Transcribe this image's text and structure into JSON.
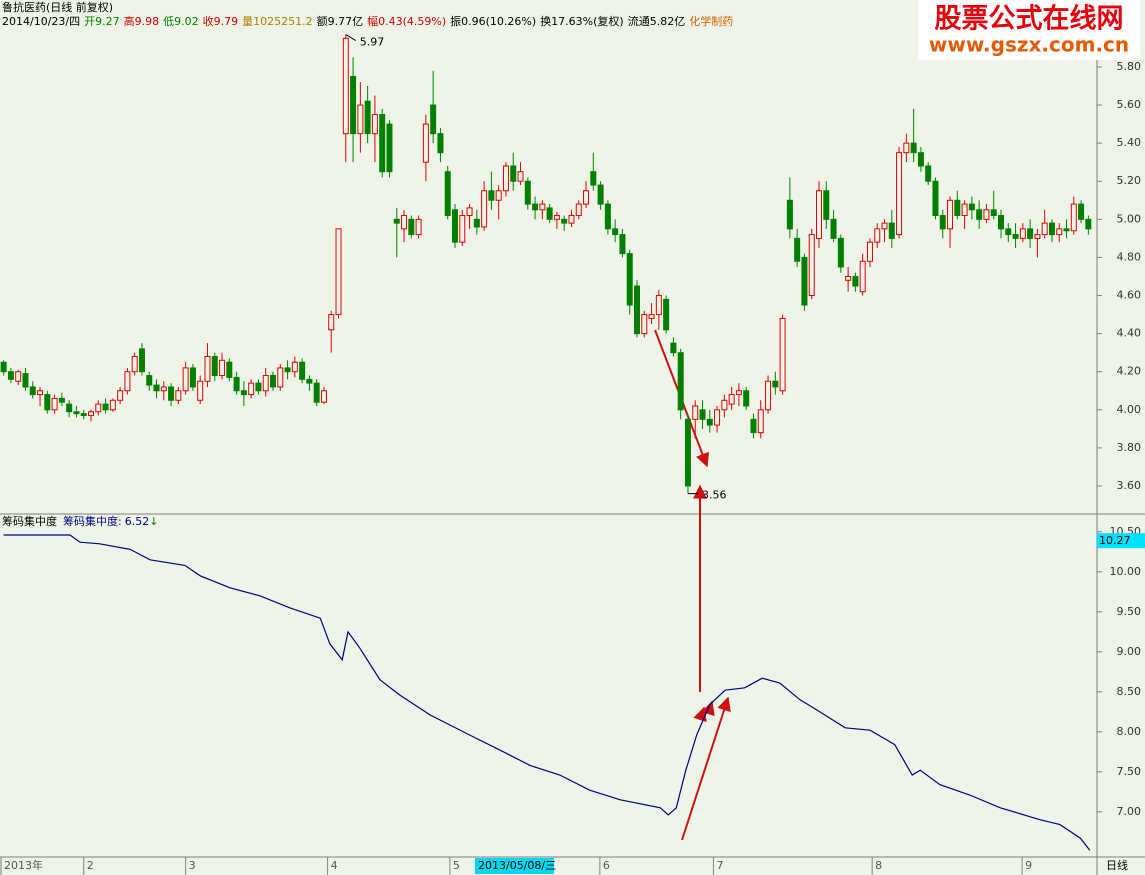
{
  "header": {
    "title": "鲁抗医药(日线 前复权)",
    "fields": [
      {
        "text": "2014/10/23/四",
        "color": "#000000"
      },
      {
        "text": "开9.27",
        "color": "#008000"
      },
      {
        "text": "高9.98",
        "color": "#d00000"
      },
      {
        "text": "低9.02",
        "color": "#008000"
      },
      {
        "text": "收9.79",
        "color": "#d00000"
      },
      {
        "text": "量1025251.2",
        "color": "#b08000"
      },
      {
        "text": "额9.77亿",
        "color": "#000000"
      },
      {
        "text": "幅0.43(4.59%)",
        "color": "#d00000"
      },
      {
        "text": "振0.96(10.26%)",
        "color": "#000000"
      },
      {
        "text": "换17.63%(复权)",
        "color": "#000000"
      },
      {
        "text": "流通5.82亿",
        "color": "#000000"
      },
      {
        "text": "化学制药",
        "color": "#d06000"
      }
    ]
  },
  "watermark": {
    "title": "股票公式在线网",
    "url": "www.gszx.com.cn"
  },
  "chart_data": [
    {
      "type": "candlestick",
      "up_color": "#e00000",
      "down_color": "#008000",
      "xlim": [
        -0.5,
        149.5
      ],
      "ylim": [
        3.474,
        5.994
      ],
      "yticks": [
        {
          "value": 3.6,
          "label": "3.60"
        },
        {
          "value": 3.8,
          "label": "3.80"
        },
        {
          "value": 4.0,
          "label": "4.00"
        },
        {
          "value": 4.2,
          "label": "4.20"
        },
        {
          "value": 4.4,
          "label": "4.40"
        },
        {
          "value": 4.6,
          "label": "4.60"
        },
        {
          "value": 4.8,
          "label": "4.80"
        },
        {
          "value": 5.0,
          "label": "5.00"
        },
        {
          "value": 5.2,
          "label": "5.20"
        },
        {
          "value": 5.4,
          "label": "5.40"
        },
        {
          "value": 5.6,
          "label": "5.60"
        },
        {
          "value": 5.8,
          "label": "5.80"
        }
      ],
      "annotations": [
        {
          "x": 47,
          "value": 5.97
        },
        {
          "x": 94,
          "value": 3.56
        }
      ],
      "ohlc": [
        [
          4.25,
          4.26,
          4.18,
          4.2
        ],
        [
          4.2,
          4.22,
          4.14,
          4.16
        ],
        [
          4.15,
          4.21,
          4.13,
          4.2
        ],
        [
          4.19,
          4.22,
          4.1,
          4.12
        ],
        [
          4.12,
          4.15,
          4.06,
          4.08
        ],
        [
          4.08,
          4.12,
          4.02,
          4.1
        ],
        [
          4.08,
          4.1,
          3.98,
          4.0
        ],
        [
          4.0,
          4.08,
          3.98,
          4.06
        ],
        [
          4.06,
          4.09,
          4.02,
          4.04
        ],
        [
          4.03,
          4.05,
          3.96,
          3.99
        ],
        [
          3.99,
          4.02,
          3.96,
          3.98
        ],
        [
          3.98,
          4.0,
          3.95,
          3.97
        ],
        [
          3.97,
          4.0,
          3.94,
          3.99
        ],
        [
          3.99,
          4.05,
          3.97,
          4.03
        ],
        [
          4.03,
          4.06,
          3.98,
          4.0
        ],
        [
          4.0,
          4.06,
          3.99,
          4.05
        ],
        [
          4.05,
          4.12,
          4.03,
          4.1
        ],
        [
          4.1,
          4.22,
          4.08,
          4.2
        ],
        [
          4.2,
          4.3,
          4.18,
          4.28
        ],
        [
          4.32,
          4.35,
          4.18,
          4.2
        ],
        [
          4.18,
          4.2,
          4.1,
          4.13
        ],
        [
          4.13,
          4.16,
          4.06,
          4.1
        ],
        [
          4.1,
          4.15,
          4.05,
          4.12
        ],
        [
          4.12,
          4.14,
          4.02,
          4.05
        ],
        [
          4.05,
          4.12,
          4.03,
          4.1
        ],
        [
          4.1,
          4.25,
          4.08,
          4.22
        ],
        [
          4.22,
          4.24,
          4.1,
          4.12
        ],
        [
          4.05,
          4.18,
          4.03,
          4.15
        ],
        [
          4.15,
          4.35,
          4.12,
          4.28
        ],
        [
          4.28,
          4.3,
          4.15,
          4.18
        ],
        [
          4.18,
          4.3,
          4.16,
          4.26
        ],
        [
          4.25,
          4.27,
          4.15,
          4.17
        ],
        [
          4.17,
          4.2,
          4.08,
          4.1
        ],
        [
          4.1,
          4.15,
          4.02,
          4.08
        ],
        [
          4.08,
          4.16,
          4.06,
          4.14
        ],
        [
          4.14,
          4.16,
          4.08,
          4.1
        ],
        [
          4.1,
          4.22,
          4.07,
          4.18
        ],
        [
          4.18,
          4.2,
          4.1,
          4.12
        ],
        [
          4.12,
          4.24,
          4.1,
          4.22
        ],
        [
          4.22,
          4.26,
          4.16,
          4.2
        ],
        [
          4.2,
          4.28,
          4.17,
          4.25
        ],
        [
          4.25,
          4.27,
          4.14,
          4.16
        ],
        [
          4.16,
          4.18,
          4.1,
          4.14
        ],
        [
          4.14,
          4.16,
          4.02,
          4.04
        ],
        [
          4.04,
          4.12,
          4.03,
          4.1
        ],
        [
          4.42,
          4.52,
          4.3,
          4.5
        ],
        [
          4.5,
          4.95,
          4.48,
          4.95
        ],
        [
          5.45,
          5.97,
          5.3,
          5.95
        ],
        [
          5.75,
          5.85,
          5.3,
          5.45
        ],
        [
          5.45,
          5.72,
          5.35,
          5.6
        ],
        [
          5.62,
          5.7,
          5.4,
          5.45
        ],
        [
          5.45,
          5.65,
          5.3,
          5.55
        ],
        [
          5.55,
          5.58,
          5.22,
          5.25
        ],
        [
          5.5,
          5.52,
          5.22,
          5.25
        ],
        [
          5.0,
          5.06,
          4.8,
          4.98
        ],
        [
          4.95,
          5.05,
          4.88,
          5.02
        ],
        [
          5.0,
          5.02,
          4.9,
          4.92
        ],
        [
          4.92,
          5.02,
          4.9,
          5.0
        ],
        [
          5.3,
          5.55,
          5.2,
          5.5
        ],
        [
          5.6,
          5.78,
          5.4,
          5.45
        ],
        [
          5.45,
          5.48,
          5.3,
          5.35
        ],
        [
          5.25,
          5.28,
          5.0,
          5.02
        ],
        [
          5.05,
          5.08,
          4.85,
          4.88
        ],
        [
          4.88,
          5.05,
          4.86,
          5.02
        ],
        [
          5.02,
          5.08,
          4.95,
          5.06
        ],
        [
          5.0,
          5.05,
          4.92,
          4.96
        ],
        [
          4.96,
          5.2,
          4.94,
          5.15
        ],
        [
          5.15,
          5.25,
          5.05,
          5.1
        ],
        [
          5.1,
          5.18,
          5.0,
          5.15
        ],
        [
          5.15,
          5.3,
          5.12,
          5.28
        ],
        [
          5.28,
          5.35,
          5.15,
          5.2
        ],
        [
          5.2,
          5.3,
          5.18,
          5.25
        ],
        [
          5.2,
          5.22,
          5.05,
          5.08
        ],
        [
          5.08,
          5.12,
          5.0,
          5.05
        ],
        [
          5.05,
          5.1,
          5.0,
          5.08
        ],
        [
          5.06,
          5.08,
          4.98,
          5.0
        ],
        [
          5.0,
          5.04,
          4.95,
          5.02
        ],
        [
          5.0,
          5.02,
          4.94,
          4.98
        ],
        [
          4.98,
          5.05,
          4.96,
          5.02
        ],
        [
          5.02,
          5.1,
          5.0,
          5.08
        ],
        [
          5.08,
          5.2,
          5.06,
          5.15
        ],
        [
          5.25,
          5.35,
          5.15,
          5.18
        ],
        [
          5.18,
          5.2,
          5.05,
          5.08
        ],
        [
          5.08,
          5.1,
          4.92,
          4.95
        ],
        [
          4.95,
          5.0,
          4.88,
          4.92
        ],
        [
          4.92,
          4.95,
          4.8,
          4.82
        ],
        [
          4.82,
          4.84,
          4.5,
          4.55
        ],
        [
          4.65,
          4.68,
          4.38,
          4.4
        ],
        [
          4.4,
          4.52,
          4.38,
          4.5
        ],
        [
          4.48,
          4.56,
          4.45,
          4.5
        ],
        [
          4.5,
          4.63,
          4.42,
          4.6
        ],
        [
          4.58,
          4.6,
          4.4,
          4.42
        ],
        [
          4.35,
          4.38,
          4.28,
          4.3
        ],
        [
          4.3,
          4.32,
          3.95,
          4.0
        ],
        [
          3.95,
          3.98,
          3.56,
          3.6
        ],
        [
          3.95,
          4.05,
          3.85,
          4.02
        ],
        [
          4.0,
          4.05,
          3.9,
          3.95
        ],
        [
          3.95,
          4.0,
          3.88,
          3.92
        ],
        [
          3.92,
          4.02,
          3.88,
          4.0
        ],
        [
          4.0,
          4.08,
          3.96,
          4.05
        ],
        [
          4.03,
          4.12,
          4.0,
          4.08
        ],
        [
          4.08,
          4.14,
          4.02,
          4.1
        ],
        [
          4.1,
          4.12,
          4.0,
          4.02
        ],
        [
          3.95,
          3.98,
          3.85,
          3.88
        ],
        [
          3.88,
          4.05,
          3.85,
          4.0
        ],
        [
          4.0,
          4.18,
          3.98,
          4.15
        ],
        [
          4.15,
          4.2,
          4.08,
          4.12
        ],
        [
          4.1,
          4.5,
          4.08,
          4.48
        ],
        [
          5.1,
          5.22,
          4.9,
          4.95
        ],
        [
          4.9,
          4.95,
          4.75,
          4.78
        ],
        [
          4.8,
          4.82,
          4.52,
          4.55
        ],
        [
          4.6,
          4.95,
          4.58,
          4.92
        ],
        [
          4.9,
          5.2,
          4.85,
          5.15
        ],
        [
          5.15,
          5.2,
          4.95,
          5.0
        ],
        [
          5.0,
          5.05,
          4.88,
          4.9
        ],
        [
          4.9,
          4.92,
          4.72,
          4.75
        ],
        [
          4.68,
          4.75,
          4.62,
          4.7
        ],
        [
          4.7,
          4.72,
          4.62,
          4.65
        ],
        [
          4.62,
          4.82,
          4.6,
          4.78
        ],
        [
          4.78,
          4.9,
          4.75,
          4.88
        ],
        [
          4.88,
          4.98,
          4.85,
          4.95
        ],
        [
          4.95,
          5.0,
          4.88,
          4.98
        ],
        [
          4.98,
          5.05,
          4.85,
          4.9
        ],
        [
          4.92,
          5.38,
          4.9,
          5.35
        ],
        [
          5.35,
          5.45,
          5.3,
          5.4
        ],
        [
          5.4,
          5.58,
          5.3,
          5.35
        ],
        [
          5.35,
          5.38,
          5.25,
          5.28
        ],
        [
          5.28,
          5.3,
          5.18,
          5.2
        ],
        [
          5.2,
          5.22,
          5.0,
          5.02
        ],
        [
          5.02,
          5.05,
          4.9,
          4.95
        ],
        [
          4.95,
          5.12,
          4.85,
          5.1
        ],
        [
          5.1,
          5.15,
          5.0,
          5.02
        ],
        [
          5.02,
          5.1,
          4.95,
          5.08
        ],
        [
          5.08,
          5.12,
          5.0,
          5.05
        ],
        [
          5.05,
          5.1,
          4.95,
          5.0
        ],
        [
          5.0,
          5.08,
          4.98,
          5.05
        ],
        [
          5.05,
          5.15,
          5.0,
          5.02
        ],
        [
          5.02,
          5.05,
          4.9,
          4.95
        ],
        [
          4.95,
          4.98,
          4.88,
          4.92
        ],
        [
          4.92,
          4.98,
          4.85,
          4.9
        ],
        [
          4.9,
          4.98,
          4.88,
          4.95
        ],
        [
          4.95,
          5.0,
          4.85,
          4.9
        ],
        [
          4.9,
          4.95,
          4.8,
          4.92
        ],
        [
          4.92,
          5.05,
          4.9,
          4.98
        ],
        [
          4.98,
          5.0,
          4.88,
          4.92
        ],
        [
          4.92,
          4.98,
          4.88,
          4.95
        ],
        [
          4.95,
          5.0,
          4.9,
          4.94
        ],
        [
          4.94,
          5.12,
          4.92,
          5.08
        ],
        [
          5.08,
          5.1,
          4.98,
          5.0
        ],
        [
          5.0,
          5.02,
          4.92,
          4.95
        ]
      ]
    },
    {
      "type": "line",
      "title": "筹码集中度",
      "trend_mark": "↓",
      "xlim": [
        -0.5,
        149.5
      ],
      "ylim": [
        6.46,
        10.71
      ],
      "yticks": [
        {
          "value": 7.0,
          "label": "7.00"
        },
        {
          "value": 7.5,
          "label": "7.50"
        },
        {
          "value": 8.0,
          "label": "8.00"
        },
        {
          "value": 8.5,
          "label": "8.50"
        },
        {
          "value": 9.0,
          "label": "9.00"
        },
        {
          "value": 9.5,
          "label": "9.50"
        },
        {
          "value": 10.0,
          "label": "10.00"
        },
        {
          "value": 10.5,
          "label": "10.50"
        }
      ],
      "xticks": [
        {
          "value": -0.5,
          "label": "2013年"
        },
        {
          "value": 11,
          "label": "2"
        },
        {
          "value": 25,
          "label": "3"
        },
        {
          "value": 44.5,
          "label": "4"
        },
        {
          "value": 61.3,
          "label": "5"
        },
        {
          "value": 81.9,
          "label": "6"
        },
        {
          "value": 97.5,
          "label": "7"
        },
        {
          "value": 119.3,
          "label": "8"
        },
        {
          "value": 139.9,
          "label": "9"
        }
      ],
      "cursor_label": "2013/05/08/三",
      "period": "日线",
      "current_value": 10.27,
      "current_value_color": "#00e0ff",
      "x": [
        0,
        9.1,
        10.5,
        13.2,
        17.4,
        20.1,
        24.9,
        27,
        31.1,
        35.2,
        39.3,
        43.5,
        44.8,
        46.5,
        47.3,
        48.9,
        51.7,
        54.4,
        58.6,
        64,
        68.2,
        72.3,
        76.4,
        80.5,
        84.7,
        90.2,
        91.3,
        92.4,
        93.7,
        95.2,
        97,
        99.1,
        101.8,
        104.2,
        106.6,
        109.4,
        112.1,
        115.6,
        119,
        122.4,
        124.8,
        125.9,
        128.6,
        132.7,
        136.9,
        142.4,
        145.1,
        147.9,
        149.2
      ],
      "series": [
        {
          "name": "筹码集中度:",
          "color": "#000080",
          "values": [
            10.46,
            10.46,
            10.37,
            10.35,
            10.28,
            10.15,
            10.08,
            9.95,
            9.8,
            9.7,
            9.55,
            9.42,
            9.1,
            8.9,
            9.25,
            9.05,
            8.65,
            8.46,
            8.21,
            7.96,
            7.77,
            7.58,
            7.46,
            7.27,
            7.15,
            7.05,
            6.96,
            7.05,
            7.52,
            7.96,
            8.34,
            8.52,
            8.55,
            8.67,
            8.61,
            8.4,
            8.25,
            8.05,
            8.02,
            7.84,
            7.46,
            7.52,
            7.34,
            7.21,
            7.05,
            6.9,
            6.84,
            6.67,
            6.52
          ]
        }
      ]
    }
  ]
}
